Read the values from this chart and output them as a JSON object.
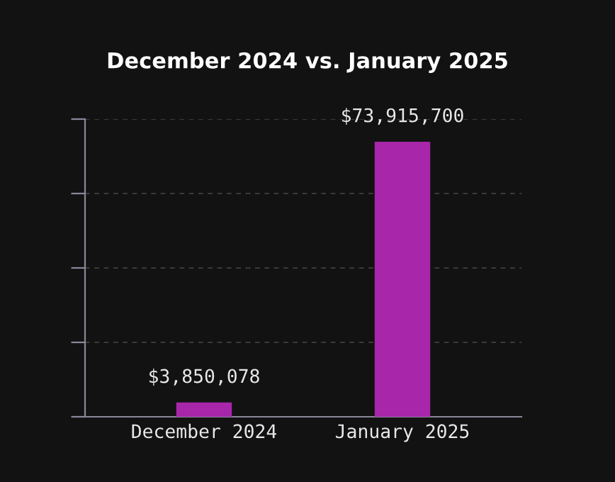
{
  "chart_data": {
    "type": "bar",
    "title": "December 2024 vs. January 2025",
    "categories": [
      "December 2024",
      "January 2025"
    ],
    "values": [
      3850078,
      73915700
    ],
    "value_labels": [
      "$3,850,078",
      "$73,915,700"
    ],
    "color": "#a726a9",
    "ylim": [
      0,
      80000000
    ],
    "yticks": [
      {
        "value": 0,
        "label": null
      },
      {
        "value": 20000000,
        "label": null
      },
      {
        "value": 40000000,
        "label": null
      },
      {
        "value": 60000000,
        "label": null
      },
      {
        "value": 80000000,
        "label": null
      }
    ],
    "tick_labels": "x",
    "grid": "y"
  }
}
